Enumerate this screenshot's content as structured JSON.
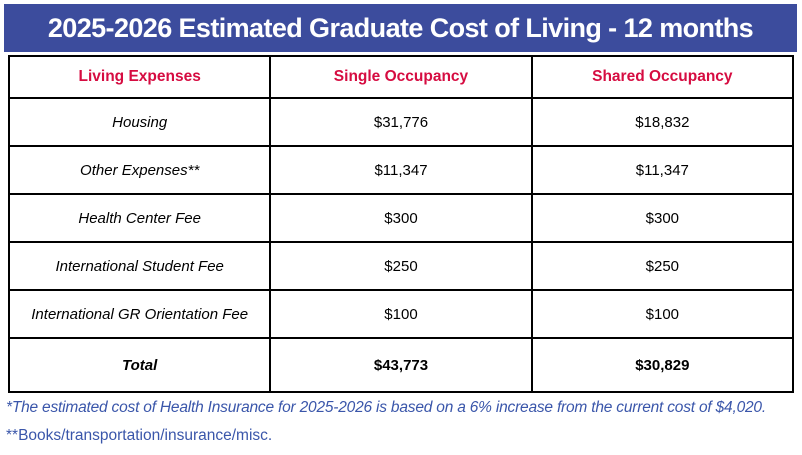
{
  "title": "2025-2026 Estimated Graduate Cost of Living - 12 months",
  "colors": {
    "title_bar_bg": "#3C4C9D",
    "title_text": "#FFFFFF",
    "column_header_text": "#D60C41",
    "body_text": "#000000",
    "footnote_text": "#3A56AA",
    "table_border": "#000000"
  },
  "table": {
    "columns": [
      "Living Expenses",
      "Single Occupancy",
      "Shared Occupancy"
    ],
    "rows": [
      {
        "label": "Housing",
        "single": "$31,776",
        "shared": "$18,832"
      },
      {
        "label": "Other Expenses**",
        "single": "$11,347",
        "shared": "$11,347"
      },
      {
        "label": "Health Center Fee",
        "single": "$300",
        "shared": "$300"
      },
      {
        "label": "International Student Fee",
        "single": "$250",
        "shared": "$250"
      },
      {
        "label": "International GR Orientation Fee",
        "single": "$100",
        "shared": "$100"
      }
    ],
    "total": {
      "label": "Total",
      "single": "$43,773",
      "shared": "$30,829"
    }
  },
  "footnotes": [
    "*The estimated cost of Health Insurance for 2025-2026 is based on a 6% increase from the current cost of $4,020.",
    "**Books/transportation/insurance/misc."
  ]
}
